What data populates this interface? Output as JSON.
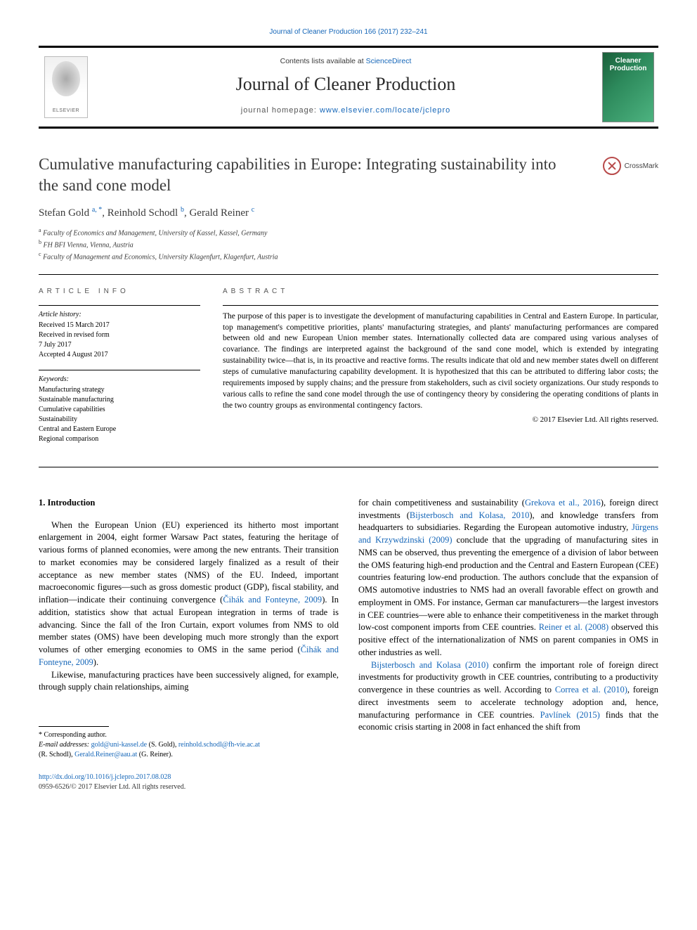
{
  "header": {
    "citation": "Journal of Cleaner Production 166 (2017) 232–241",
    "contents_prefix": "Contents lists available at ",
    "contents_link": "ScienceDirect",
    "journal_name": "Journal of Cleaner Production",
    "homepage_prefix": "journal homepage: ",
    "homepage_url": "www.elsevier.com/locate/jclepro",
    "publisher_logo_text": "ELSEVIER",
    "cover_text_line1": "Cleaner",
    "cover_text_line2": "Production",
    "crossmark_label": "CrossMark"
  },
  "article": {
    "title": "Cumulative manufacturing capabilities in Europe: Integrating sustainability into the sand cone model",
    "authors_html": "Stefan Gold <sup>a, *</sup>, Reinhold Schodl <sup>b</sup>, Gerald Reiner <sup>c</sup>",
    "affiliations": [
      "a Faculty of Economics and Management, University of Kassel, Kassel, Germany",
      "b FH BFI Vienna, Vienna, Austria",
      "c Faculty of Management and Economics, University Klagenfurt, Klagenfurt, Austria"
    ]
  },
  "info": {
    "heading": "ARTICLE INFO",
    "history_title": "Article history:",
    "history_lines": [
      "Received 15 March 2017",
      "Received in revised form",
      "7 July 2017",
      "Accepted 4 August 2017"
    ],
    "keywords_title": "Keywords:",
    "keywords": [
      "Manufacturing strategy",
      "Sustainable manufacturing",
      "Cumulative capabilities",
      "Sustainability",
      "Central and Eastern Europe",
      "Regional comparison"
    ]
  },
  "abstract": {
    "heading": "ABSTRACT",
    "text": "The purpose of this paper is to investigate the development of manufacturing capabilities in Central and Eastern Europe. In particular, top management's competitive priorities, plants' manufacturing strategies, and plants' manufacturing performances are compared between old and new European Union member states. Internationally collected data are compared using various analyses of covariance. The findings are interpreted against the background of the sand cone model, which is extended by integrating sustainability twice—that is, in its proactive and reactive forms. The results indicate that old and new member states dwell on different steps of cumulative manufacturing capability development. It is hypothesized that this can be attributed to differing labor costs; the requirements imposed by supply chains; and the pressure from stakeholders, such as civil society organizations. Our study responds to various calls to refine the sand cone model through the use of contingency theory by considering the operating conditions of plants in the two country groups as environmental contingency factors.",
    "copyright": "© 2017 Elsevier Ltd. All rights reserved."
  },
  "body": {
    "section_heading": "1. Introduction",
    "col1_p1_pre": "When the European Union (EU) experienced its hitherto most important enlargement in 2004, eight former Warsaw Pact states, featuring the heritage of various forms of planned economies, were among the new entrants. Their transition to market economies may be considered largely finalized as a result of their acceptance as new member states (NMS) of the EU. Indeed, important macroeconomic figures—such as gross domestic product (GDP), fiscal stability, and inflation—indicate their continuing convergence (",
    "col1_p1_ref1": "Čihák and Fonteyne, 2009",
    "col1_p1_mid": "). In addition, statistics show that actual European integration in terms of trade is advancing. Since the fall of the Iron Curtain, export volumes from NMS to old member states (OMS) have been developing much more strongly than the export volumes of other emerging economies to OMS in the same period (",
    "col1_p1_ref2": "Čihák and Fonteyne, 2009",
    "col1_p1_end": ").",
    "col1_p2": "Likewise, manufacturing practices have been successively aligned, for example, through supply chain relationships, aiming",
    "col2_p1_a": "for chain competitiveness and sustainability (",
    "col2_p1_ref1": "Grekova et al., 2016",
    "col2_p1_b": "), foreign direct investments (",
    "col2_p1_ref2": "Bijsterbosch and Kolasa, 2010",
    "col2_p1_c": "), and knowledge transfers from headquarters to subsidiaries. Regarding the European automotive industry, ",
    "col2_p1_ref3": "Jürgens and Krzywdzinski (2009)",
    "col2_p1_d": " conclude that the upgrading of manufacturing sites in NMS can be observed, thus preventing the emergence of a division of labor between the OMS featuring high-end production and the Central and Eastern European (CEE) countries featuring low-end production. The authors conclude that the expansion of OMS automotive industries to NMS had an overall favorable effect on growth and employment in OMS. For instance, German car manufacturers—the largest investors in CEE countries—were able to enhance their competitiveness in the market through low-cost component imports from CEE countries. ",
    "col2_p1_ref4": "Reiner et al. (2008)",
    "col2_p1_e": " observed this positive effect of the internationalization of NMS on parent companies in OMS in other industries as well.",
    "col2_p2_ref1": "Bijsterbosch and Kolasa (2010)",
    "col2_p2_a": " confirm the important role of foreign direct investments for productivity growth in CEE countries, contributing to a productivity convergence in these countries as well. According to ",
    "col2_p2_ref2": "Correa et al. (2010)",
    "col2_p2_b": ", foreign direct investments seem to accelerate technology adoption and, hence, manufacturing performance in CEE countries. ",
    "col2_p2_ref3": "Pavlínek (2015)",
    "col2_p2_c": " finds that the economic crisis starting in 2008 in fact enhanced the shift from"
  },
  "footnote": {
    "corresponding": "* Corresponding author.",
    "email_label": "E-mail addresses: ",
    "email1": "gold@uni-kassel.de",
    "email1_name": " (S. Gold), ",
    "email2": "reinhold.schodl@fh-vie.ac.at",
    "email2_name": " (R. Schodl), ",
    "email3": "Gerald.Reiner@aau.at",
    "email3_name": " (G. Reiner)."
  },
  "doi": {
    "url": "http://dx.doi.org/10.1016/j.jclepro.2017.08.028",
    "issn_line": "0959-6526/© 2017 Elsevier Ltd. All rights reserved."
  },
  "colors": {
    "link": "#1566b8",
    "text": "#000000",
    "heading_gray": "#555555",
    "cover_green": "#2d8a5c"
  }
}
